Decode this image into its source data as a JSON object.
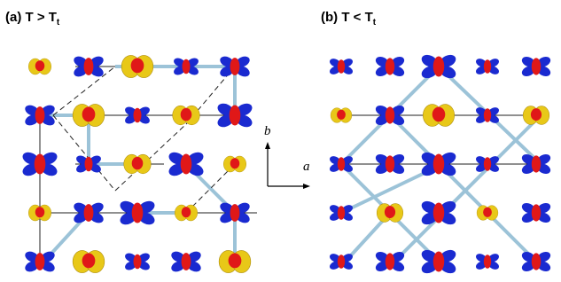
{
  "panels": [
    {
      "label": "(a) T > T",
      "subscript": "t"
    },
    {
      "label": "(b) T < T",
      "subscript": "t"
    }
  ],
  "axes": {
    "y": "b",
    "x": "a"
  }
}
